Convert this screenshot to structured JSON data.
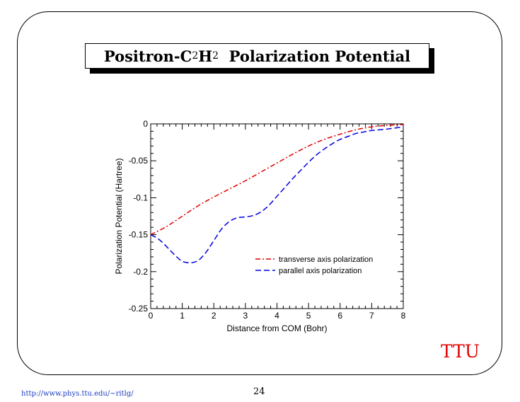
{
  "slide": {
    "title_parts": [
      "Positron-C",
      "2",
      "H",
      "2",
      "  Polarization Potential"
    ],
    "logo": "TTU",
    "footer_url": "http://www.phys.ttu.edu/~ritlg/",
    "page_number": "24"
  },
  "colors": {
    "transverse": "#e00000",
    "parallel": "#0000e0",
    "logo": "#e00000",
    "footer_link": "#1a3cc0"
  },
  "chart_data": {
    "type": "line",
    "title": "",
    "xlabel": "Distance from COM (Bohr)",
    "ylabel": "Polarization Potential (Hartree)",
    "xlim": [
      0,
      8
    ],
    "ylim": [
      -0.25,
      0
    ],
    "x_ticks": [
      "0",
      "1",
      "2",
      "3",
      "4",
      "5",
      "6",
      "7",
      "8"
    ],
    "y_ticks": [
      "0",
      "-0.05",
      "-0.1",
      "-0.15",
      "-0.2",
      "-0.25"
    ],
    "grid": false,
    "legend_position": "lower-right",
    "series": [
      {
        "name": "transverse axis polarization",
        "style": "dash-dot",
        "x": [
          0,
          0.5,
          1,
          1.5,
          2,
          2.5,
          3,
          3.5,
          4,
          4.5,
          5,
          5.5,
          6,
          6.5,
          7,
          7.5,
          8
        ],
        "y": [
          -0.15,
          -0.139,
          -0.125,
          -0.111,
          -0.099,
          -0.088,
          -0.077,
          -0.065,
          -0.053,
          -0.041,
          -0.03,
          -0.021,
          -0.014,
          -0.008,
          -0.004,
          -0.002,
          -0.001
        ]
      },
      {
        "name": "parallel axis polarization",
        "style": "dashed",
        "x": [
          0,
          0.25,
          0.5,
          0.75,
          1,
          1.25,
          1.5,
          1.75,
          2,
          2.25,
          2.5,
          2.75,
          3,
          3.25,
          3.5,
          3.75,
          4,
          4.25,
          4.5,
          4.75,
          5,
          5.25,
          5.5,
          5.75,
          6,
          6.25,
          6.5,
          6.75,
          7,
          7.5,
          8
        ],
        "y": [
          -0.15,
          -0.156,
          -0.166,
          -0.177,
          -0.186,
          -0.188,
          -0.185,
          -0.174,
          -0.158,
          -0.142,
          -0.132,
          -0.127,
          -0.126,
          -0.124,
          -0.119,
          -0.11,
          -0.098,
          -0.086,
          -0.074,
          -0.063,
          -0.052,
          -0.042,
          -0.034,
          -0.027,
          -0.021,
          -0.017,
          -0.013,
          -0.011,
          -0.009,
          -0.007,
          -0.004
        ]
      }
    ]
  }
}
